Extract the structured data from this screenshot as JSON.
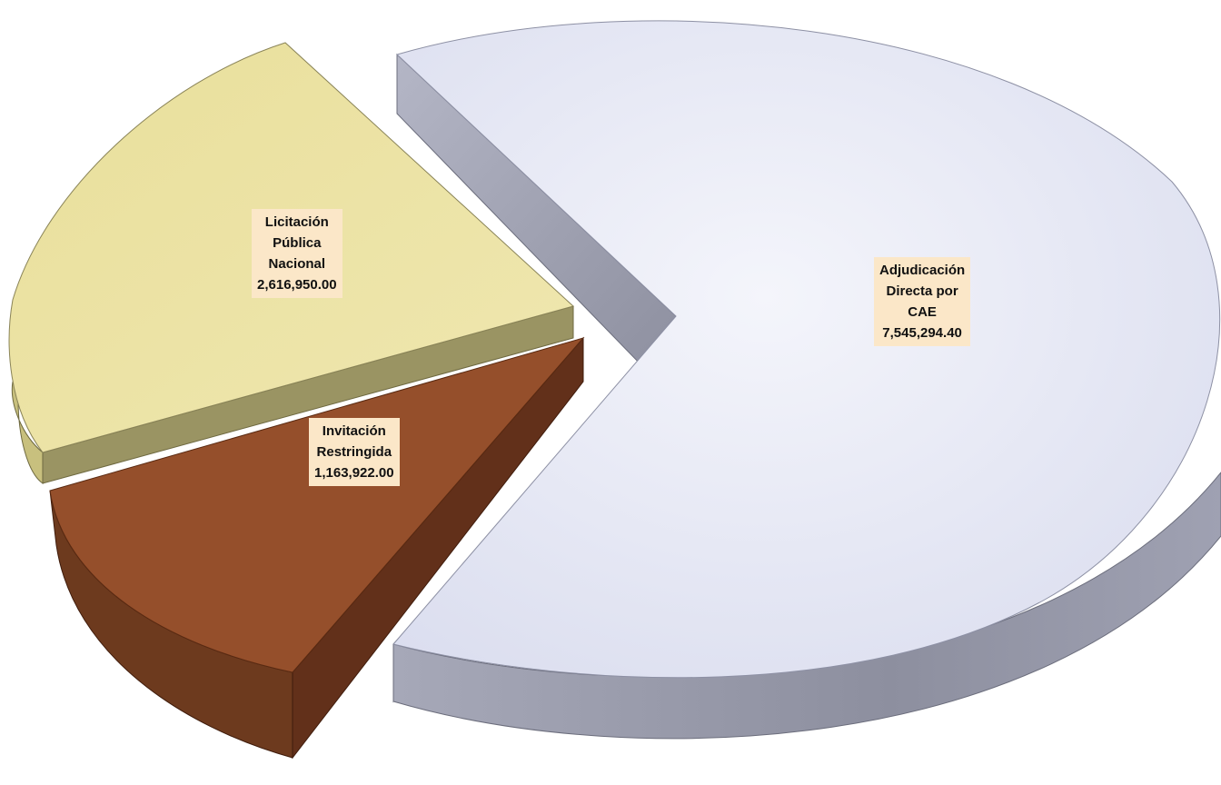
{
  "chart_data": {
    "type": "pie",
    "title": "",
    "three_d": true,
    "exploded": true,
    "slices": [
      {
        "label_lines": [
          "Adjudicación",
          "Directa por",
          "CAE"
        ],
        "value_text": "7,545,294.40",
        "value": 7545294.4,
        "color": "#e6e8f6"
      },
      {
        "label_lines": [
          "Invitación",
          "Restringida"
        ],
        "value_text": "1,163,922.00",
        "value": 1163922.0,
        "color": "#954f2b"
      },
      {
        "label_lines": [
          "Licitación",
          "Pública",
          "Nacional"
        ],
        "value_text": "2,616,950.00",
        "value": 2616950.0,
        "color": "#ebe3a4"
      }
    ]
  }
}
